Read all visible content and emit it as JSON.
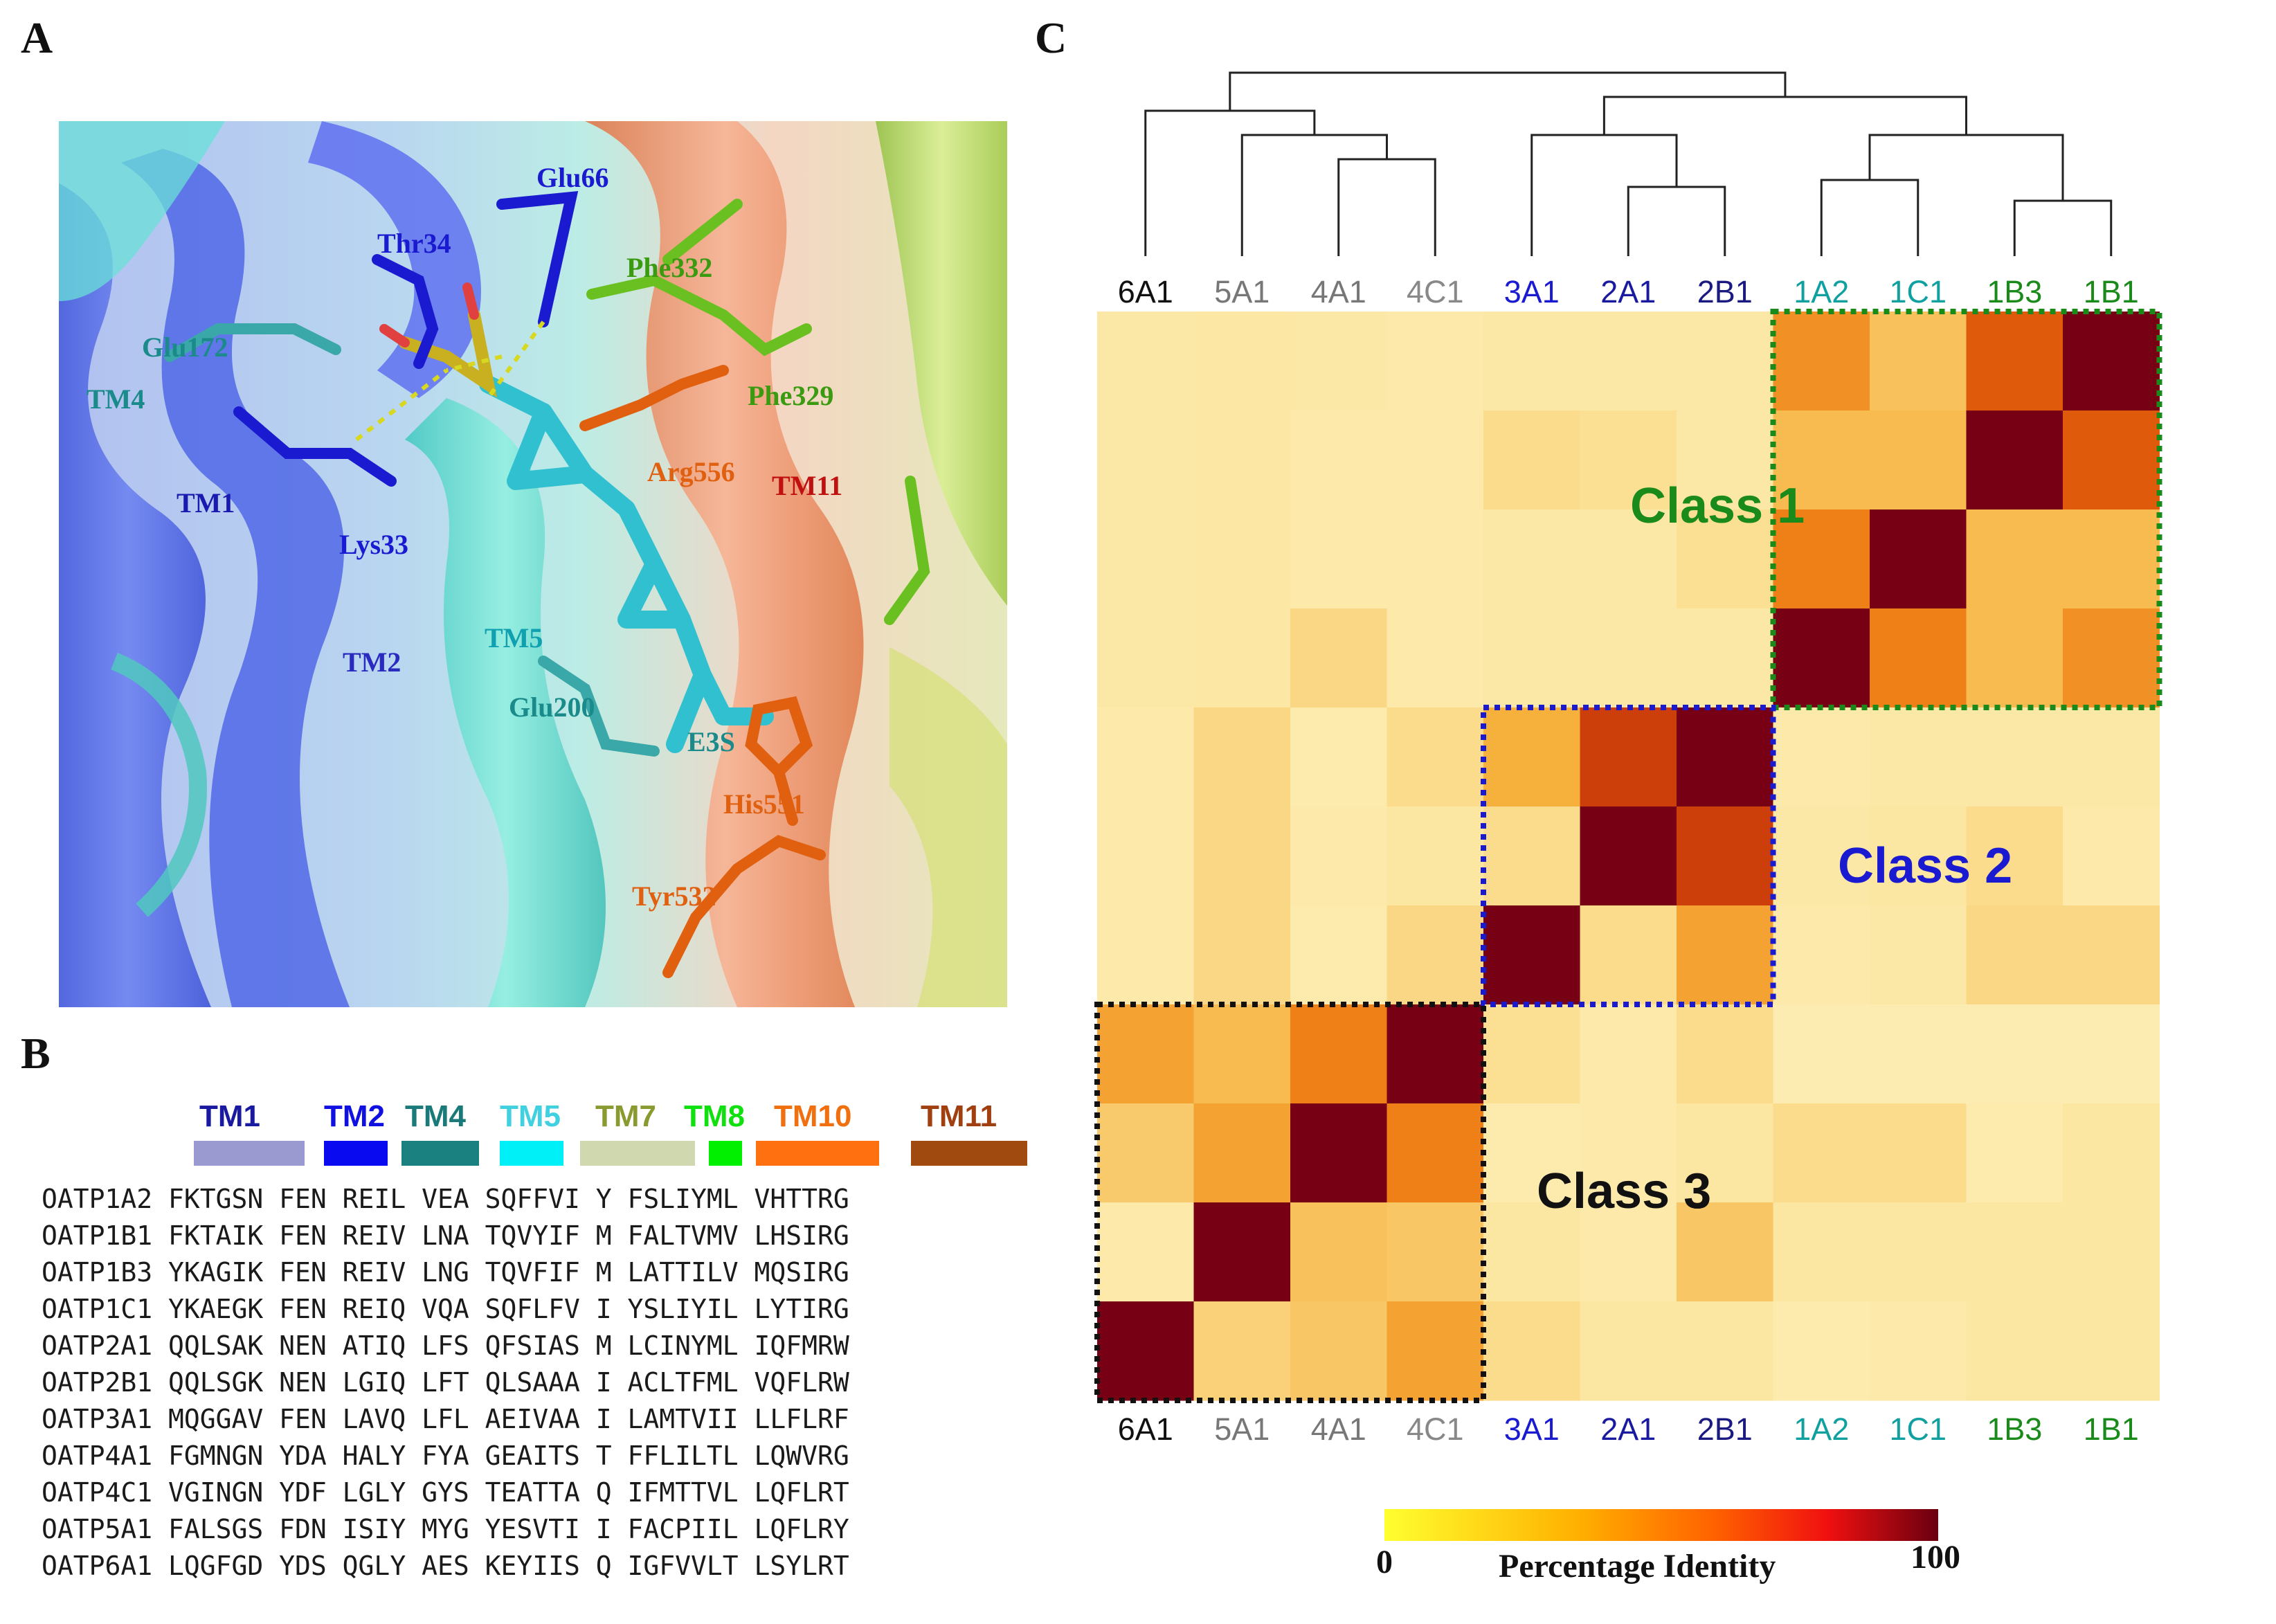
{
  "panels": {
    "a": "A",
    "b": "B",
    "c": "C"
  },
  "structure_labels": [
    {
      "text": "Glu66",
      "color": "#1a1ad0"
    },
    {
      "text": "Thr34",
      "color": "#1a1ad0"
    },
    {
      "text": "Phe332",
      "color": "#3a9a10"
    },
    {
      "text": "Glu172",
      "color": "#1a8a8a"
    },
    {
      "text": "TM4",
      "color": "#1a8a8a"
    },
    {
      "text": "Phe329",
      "color": "#3a9a10"
    },
    {
      "text": "Arg556",
      "color": "#e06010"
    },
    {
      "text": "TM11",
      "color": "#c01010"
    },
    {
      "text": "TM1",
      "color": "#1a1ab0"
    },
    {
      "text": "Lys33",
      "color": "#1a1ad0"
    },
    {
      "text": "TM5",
      "color": "#10a0b0"
    },
    {
      "text": "TM2",
      "color": "#2a2ac0"
    },
    {
      "text": "Glu200",
      "color": "#1a8a8a"
    },
    {
      "text": "E3S",
      "color": "#1a8a8a"
    },
    {
      "text": "His551",
      "color": "#e06010"
    },
    {
      "text": "Tyr532",
      "color": "#e06010"
    }
  ],
  "alignment": {
    "tm_headers": [
      {
        "label": "TM1",
        "color": "#1a1aa0",
        "bar": "#9a9ad0"
      },
      {
        "label": "TM2",
        "color": "#1010e0",
        "bar": "#0a0af0"
      },
      {
        "label": "TM4",
        "color": "#1a7a7a",
        "bar": "#1a8080"
      },
      {
        "label": "TM5",
        "color": "#40d0e0",
        "bar": "#00f0f8"
      },
      {
        "label": "TM7",
        "color": "#8a9a30",
        "bar": "#d0d8b0"
      },
      {
        "label": "TM8",
        "color": "#10e010",
        "bar": "#00f000"
      },
      {
        "label": "TM10",
        "color": "#f07010",
        "bar": "#ff7010"
      },
      {
        "label": "TM11",
        "color": "#a04010",
        "bar": "#a04a10"
      }
    ],
    "rows": [
      [
        "OATP1A2",
        "FKTGSN",
        "FEN",
        "REIL",
        "VEA",
        "SQFFVI",
        "Y",
        "FSLIYML",
        "VHTTRG"
      ],
      [
        "OATP1B1",
        "FKTAIK",
        "FEN",
        "REIV",
        "LNA",
        "TQVYIF",
        "M",
        "FALTVMV",
        "LHSIRG"
      ],
      [
        "OATP1B3",
        "YKAGIK",
        "FEN",
        "REIV",
        "LNG",
        "TQVFIF",
        "M",
        "LATTILV",
        "MQSIRG"
      ],
      [
        "OATP1C1",
        "YKAEGK",
        "FEN",
        "REIQ",
        "VQA",
        "SQFLFV",
        "I",
        "YSLIYIL",
        "LYTIRG"
      ],
      [
        "OATP2A1",
        "QQLSAK",
        "NEN",
        "ATIQ",
        "LFS",
        "QFSIAS",
        "M",
        "LCINYML",
        "IQFMRW"
      ],
      [
        "OATP2B1",
        "QQLSGK",
        "NEN",
        "LGIQ",
        "LFT",
        "QLSAAA",
        "I",
        "ACLTFML",
        "VQFLRW"
      ],
      [
        "OATP3A1",
        "MQGGAV",
        "FEN",
        "LAVQ",
        "LFL",
        "AEIVAA",
        "I",
        "LAMTVII",
        "LLFLRF"
      ],
      [
        "OATP4A1",
        "FGMNGN",
        "YDA",
        "HALY",
        "FYA",
        "GEAITS",
        "T",
        "FFLILTL",
        "LQWVRG"
      ],
      [
        "OATP4C1",
        "VGINGN",
        "YDF",
        "LGLY",
        "GYS",
        "TEATTA",
        "Q",
        "IFMTTVL",
        "LQFLRT"
      ],
      [
        "OATP5A1",
        "FALSGS",
        "FDN",
        "ISIY",
        "MYG",
        "YESVTI",
        "I",
        "FACPIIL",
        "LQFLRY"
      ],
      [
        "OATP6A1",
        "LQGFGD",
        "YDS",
        "QGLY",
        "AES",
        "KEYIIS",
        "Q",
        "IGFVVLT",
        "LSYLRT"
      ]
    ]
  },
  "chart_data": {
    "type": "heatmap",
    "title": "",
    "columns": [
      "6A1",
      "5A1",
      "4A1",
      "4C1",
      "3A1",
      "2A1",
      "2B1",
      "1A2",
      "1C1",
      "1B3",
      "1B1"
    ],
    "column_colors": [
      "#111111",
      "#777777",
      "#777777",
      "#888888",
      "#1a1ad0",
      "#1a1aa0",
      "#1a1a80",
      "#10a0a0",
      "#10a0a0",
      "#1a8a1a",
      "#1a8a1a"
    ],
    "rows_top_to_bottom": [
      "1B1",
      "1B3",
      "1C1",
      "1A2",
      "2B1",
      "2A1",
      "3A1",
      "4C1",
      "4A1",
      "5A1",
      "6A1"
    ],
    "values": [
      [
        22,
        23,
        22,
        20,
        22,
        22,
        22,
        62,
        42,
        78,
        100
      ],
      [
        22,
        23,
        20,
        20,
        30,
        28,
        22,
        45,
        45,
        100,
        78
      ],
      [
        22,
        23,
        20,
        20,
        22,
        22,
        28,
        68,
        100,
        45,
        45
      ],
      [
        22,
        23,
        32,
        20,
        22,
        22,
        22,
        100,
        68,
        45,
        62
      ],
      [
        20,
        32,
        18,
        30,
        50,
        82,
        100,
        20,
        22,
        22,
        22
      ],
      [
        20,
        32,
        20,
        24,
        30,
        100,
        82,
        22,
        24,
        30,
        20
      ],
      [
        20,
        32,
        18,
        32,
        100,
        30,
        55,
        20,
        22,
        32,
        32
      ],
      [
        55,
        45,
        68,
        100,
        28,
        20,
        30,
        16,
        16,
        16,
        16
      ],
      [
        38,
        55,
        100,
        68,
        18,
        20,
        24,
        30,
        30,
        18,
        24
      ],
      [
        20,
        100,
        42,
        40,
        24,
        20,
        40,
        24,
        24,
        24,
        24
      ],
      [
        100,
        35,
        40,
        55,
        30,
        24,
        24,
        18,
        20,
        24,
        24
      ]
    ],
    "classes": [
      {
        "name": "Class 1",
        "color": "#1a8a1a",
        "members": [
          "1A2",
          "1C1",
          "1B3",
          "1B1"
        ]
      },
      {
        "name": "Class 2",
        "color": "#1a1ad0",
        "members": [
          "3A1",
          "2A1",
          "2B1"
        ]
      },
      {
        "name": "Class 3",
        "color": "#111111",
        "members": [
          "6A1",
          "5A1",
          "4A1",
          "4C1"
        ]
      }
    ],
    "colorbar": {
      "label": "Percentage Identity",
      "min": 0,
      "max": 100,
      "min_label": "0",
      "max_label": "100"
    },
    "dendrogram": {
      "merges": [
        [
          "4A1",
          "4C1"
        ],
        [
          "5A1",
          "(4A1,4C1)"
        ],
        [
          "6A1",
          "(5A1,4A1,4C1)"
        ],
        [
          "2A1",
          "2B1"
        ],
        [
          "3A1",
          "(2A1,2B1)"
        ],
        [
          "1A2",
          "1C1"
        ],
        [
          "1B3",
          "1B1"
        ],
        [
          "(1A2,1C1)",
          "(1B3,1B1)"
        ],
        [
          "Class 2",
          "Class 1"
        ],
        [
          "Class 3",
          "(Class 2,Class 1)"
        ]
      ]
    }
  }
}
